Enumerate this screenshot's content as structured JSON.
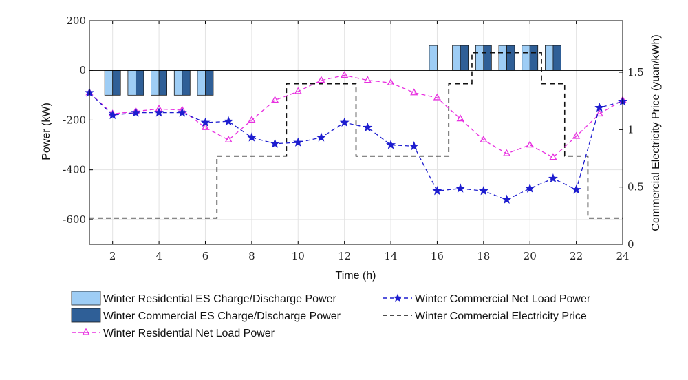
{
  "chart_data": {
    "type": "bar+line",
    "xlabel": "Time (h)",
    "ylabel_left": "Power (kW)",
    "ylabel_right": "Commercial Electricity Price (yuan/kWh)",
    "xlim": [
      1,
      24
    ],
    "ylim_left": [
      -700,
      200
    ],
    "ylim_right": [
      0,
      1.95
    ],
    "x_ticks": [
      2,
      4,
      6,
      8,
      10,
      12,
      14,
      16,
      18,
      20,
      22,
      24
    ],
    "y_left_ticks": [
      -600,
      -400,
      -200,
      0,
      200
    ],
    "y_right_ticks": [
      0,
      0.5,
      1,
      1.5
    ],
    "y_right_tick_labels": [
      "0",
      "0.5",
      "1",
      "1.5"
    ],
    "grid": true,
    "hours": [
      1,
      2,
      3,
      4,
      5,
      6,
      7,
      8,
      9,
      10,
      11,
      12,
      13,
      14,
      15,
      16,
      17,
      18,
      19,
      20,
      21,
      22,
      23,
      24
    ],
    "series": [
      {
        "name": "Winter Residential ES Charge/Discharge Power",
        "kind": "bar",
        "color": "#9ecdf5",
        "values": [
          0,
          -100,
          -100,
          -100,
          -100,
          -100,
          0,
          0,
          0,
          0,
          0,
          0,
          0,
          0,
          0,
          100,
          100,
          100,
          100,
          100,
          100,
          0,
          0,
          0
        ]
      },
      {
        "name": "Winter Commercial ES Charge/Discharge Power",
        "kind": "bar",
        "color": "#2f5f97",
        "values": [
          0,
          -100,
          -100,
          -100,
          -100,
          -100,
          0,
          0,
          0,
          0,
          0,
          0,
          0,
          0,
          0,
          0,
          100,
          100,
          100,
          100,
          100,
          0,
          0,
          0
        ]
      },
      {
        "name": "Winter Residential Net Load Power",
        "kind": "line",
        "color": "#e830e0",
        "marker": "triangle",
        "values": [
          -90,
          -175,
          -165,
          -155,
          -160,
          -230,
          -280,
          -200,
          -120,
          -85,
          -40,
          -20,
          -40,
          -50,
          -90,
          -110,
          -195,
          -280,
          -335,
          -300,
          -350,
          -265,
          -175,
          -120
        ]
      },
      {
        "name": "Winter Commercial Net Load Power",
        "kind": "line",
        "color": "#1d1dcf",
        "marker": "star",
        "values": [
          -90,
          -180,
          -170,
          -170,
          -170,
          -210,
          -205,
          -270,
          -295,
          -290,
          -270,
          -210,
          -230,
          -300,
          -305,
          -485,
          -475,
          -485,
          -520,
          -475,
          -435,
          -480,
          -150,
          -125
        ]
      },
      {
        "name": "Winter Commercial Electricity Price",
        "kind": "step",
        "axis": "right",
        "color": "#111111",
        "values": [
          0.23,
          0.23,
          0.23,
          0.23,
          0.23,
          0.23,
          0.77,
          0.77,
          0.77,
          1.4,
          1.4,
          1.4,
          0.77,
          0.77,
          0.77,
          0.77,
          1.4,
          1.67,
          1.67,
          1.67,
          1.4,
          0.77,
          0.23,
          0.23
        ]
      }
    ]
  }
}
